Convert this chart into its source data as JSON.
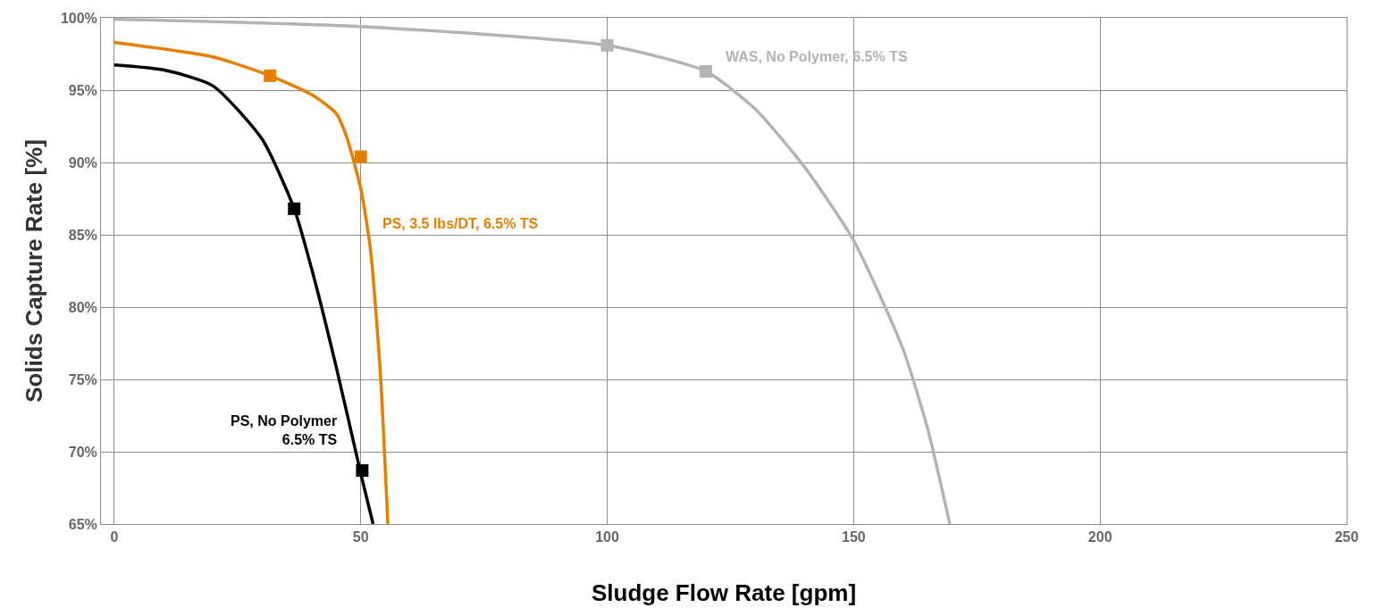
{
  "chart_data": {
    "type": "line",
    "xlabel": "Sludge Flow Rate [gpm]",
    "ylabel": "Solids Capture Rate [%]",
    "xlim": [
      -2.7,
      250
    ],
    "xticks": [
      0,
      50,
      100,
      150,
      200,
      250
    ],
    "ylim": [
      65,
      100
    ],
    "yticks": [
      {
        "value": 65,
        "label": "65%"
      },
      {
        "value": 70,
        "label": "70%"
      },
      {
        "value": 75,
        "label": "75%"
      },
      {
        "value": 80,
        "label": "80%"
      },
      {
        "value": 85,
        "label": "85%"
      },
      {
        "value": 90,
        "label": "90%"
      },
      {
        "value": 95,
        "label": "95%"
      },
      {
        "value": 100,
        "label": "100%"
      }
    ],
    "grid": true,
    "legend": false,
    "line_style": "solid",
    "series": [
      {
        "color": "#b3b3b3",
        "x": [
          0,
          50,
          100,
          120,
          130,
          140,
          150,
          160,
          165,
          169.5
        ],
        "values": [
          99.9,
          99.4,
          98.1,
          96.3,
          93.7,
          89.7,
          84.6,
          77.1,
          71.6,
          65
        ],
        "marker": "none"
      },
      {
        "color": "#e67e00",
        "x": [
          0,
          20,
          31.6,
          40,
          45,
          47,
          50,
          52,
          54,
          55.5
        ],
        "values": [
          98.3,
          97.3,
          96.0,
          94.7,
          93.4,
          91.9,
          88.2,
          83.9,
          75.3,
          65
        ],
        "marker": "none"
      },
      {
        "color": "#000000",
        "x": [
          0,
          10,
          20,
          30,
          36.5,
          40,
          45,
          50,
          52.5
        ],
        "values": [
          96.75,
          96.4,
          95.3,
          91.6,
          86.8,
          82.7,
          75.9,
          68.5,
          65
        ],
        "marker": "none"
      },
      {
        "type": "scatter",
        "name": "WAS, No Polymer, 6.5% TS",
        "color": "#b3b3b3",
        "x": [
          100,
          120
        ],
        "values": [
          98.1,
          96.3
        ],
        "marker": "square"
      },
      {
        "type": "scatter",
        "name": "PS, 3.5 lbs/DT, 6.5% TS",
        "color": "#e67e00",
        "x": [
          31.6,
          50
        ],
        "values": [
          96.0,
          90.4
        ],
        "marker": "square"
      },
      {
        "type": "scatter",
        "name": "PS, No Polymer\n6.5% TS",
        "color": "#000000",
        "x": [
          36.5,
          50.3
        ],
        "values": [
          86.8,
          68.7
        ],
        "marker": "square"
      }
    ]
  }
}
